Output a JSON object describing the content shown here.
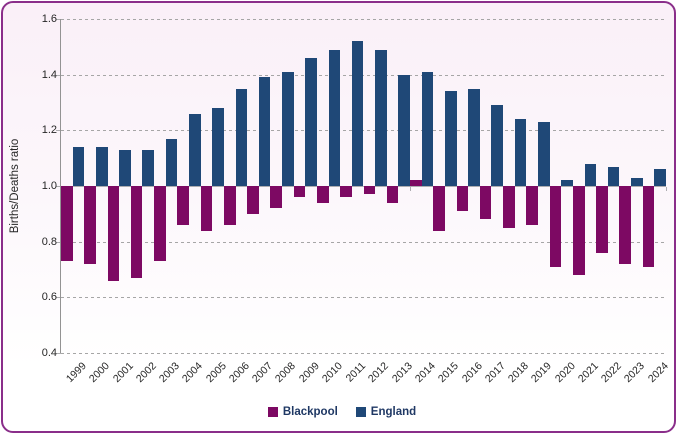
{
  "chart_data": {
    "type": "bar",
    "title": "",
    "xlabel": "",
    "ylabel": "Births/Deaths ratio",
    "ylim": [
      0.4,
      1.6
    ],
    "ytick_step": 0.2,
    "ytick_labels": [
      "0.4",
      "0.6",
      "0.8",
      "1.0",
      "1.2",
      "1.4",
      "1.6"
    ],
    "baseline": 1.0,
    "grid": "horizontal-dashed",
    "legend_position": "bottom-center",
    "categories": [
      "1999",
      "2000",
      "2001",
      "2002",
      "2003",
      "2004",
      "2005",
      "2006",
      "2007",
      "2008",
      "2009",
      "2010",
      "2011",
      "2012",
      "2013",
      "2014",
      "2015",
      "2016",
      "2017",
      "2018",
      "2019",
      "2020",
      "2021",
      "2022",
      "2023",
      "2024"
    ],
    "series": [
      {
        "name": "Blackpool",
        "color": "#7D0963",
        "values": [
          0.73,
          0.72,
          0.66,
          0.67,
          0.73,
          0.86,
          0.84,
          0.86,
          0.9,
          0.92,
          0.96,
          0.94,
          0.96,
          0.97,
          0.94,
          1.02,
          0.84,
          0.91,
          0.88,
          0.85,
          0.86,
          0.71,
          0.68,
          0.76,
          0.72,
          0.71
        ]
      },
      {
        "name": "England",
        "color": "#1F4877",
        "values": [
          1.14,
          1.14,
          1.13,
          1.13,
          1.17,
          1.26,
          1.28,
          1.35,
          1.39,
          1.41,
          1.46,
          1.49,
          1.52,
          1.49,
          1.4,
          1.41,
          1.34,
          1.35,
          1.29,
          1.24,
          1.23,
          1.02,
          1.08,
          1.07,
          1.03,
          1.06
        ]
      }
    ]
  },
  "colors": {
    "card_border": "#8A2E8A",
    "background_top": "#FAF0F8",
    "background_bottom": "#FFFFFF",
    "gridline": "#A6A6A6",
    "value_axis": "#939393",
    "category_axis": "#ADADB0",
    "tick_text": "#262626",
    "legend_text": "#1F3864"
  }
}
